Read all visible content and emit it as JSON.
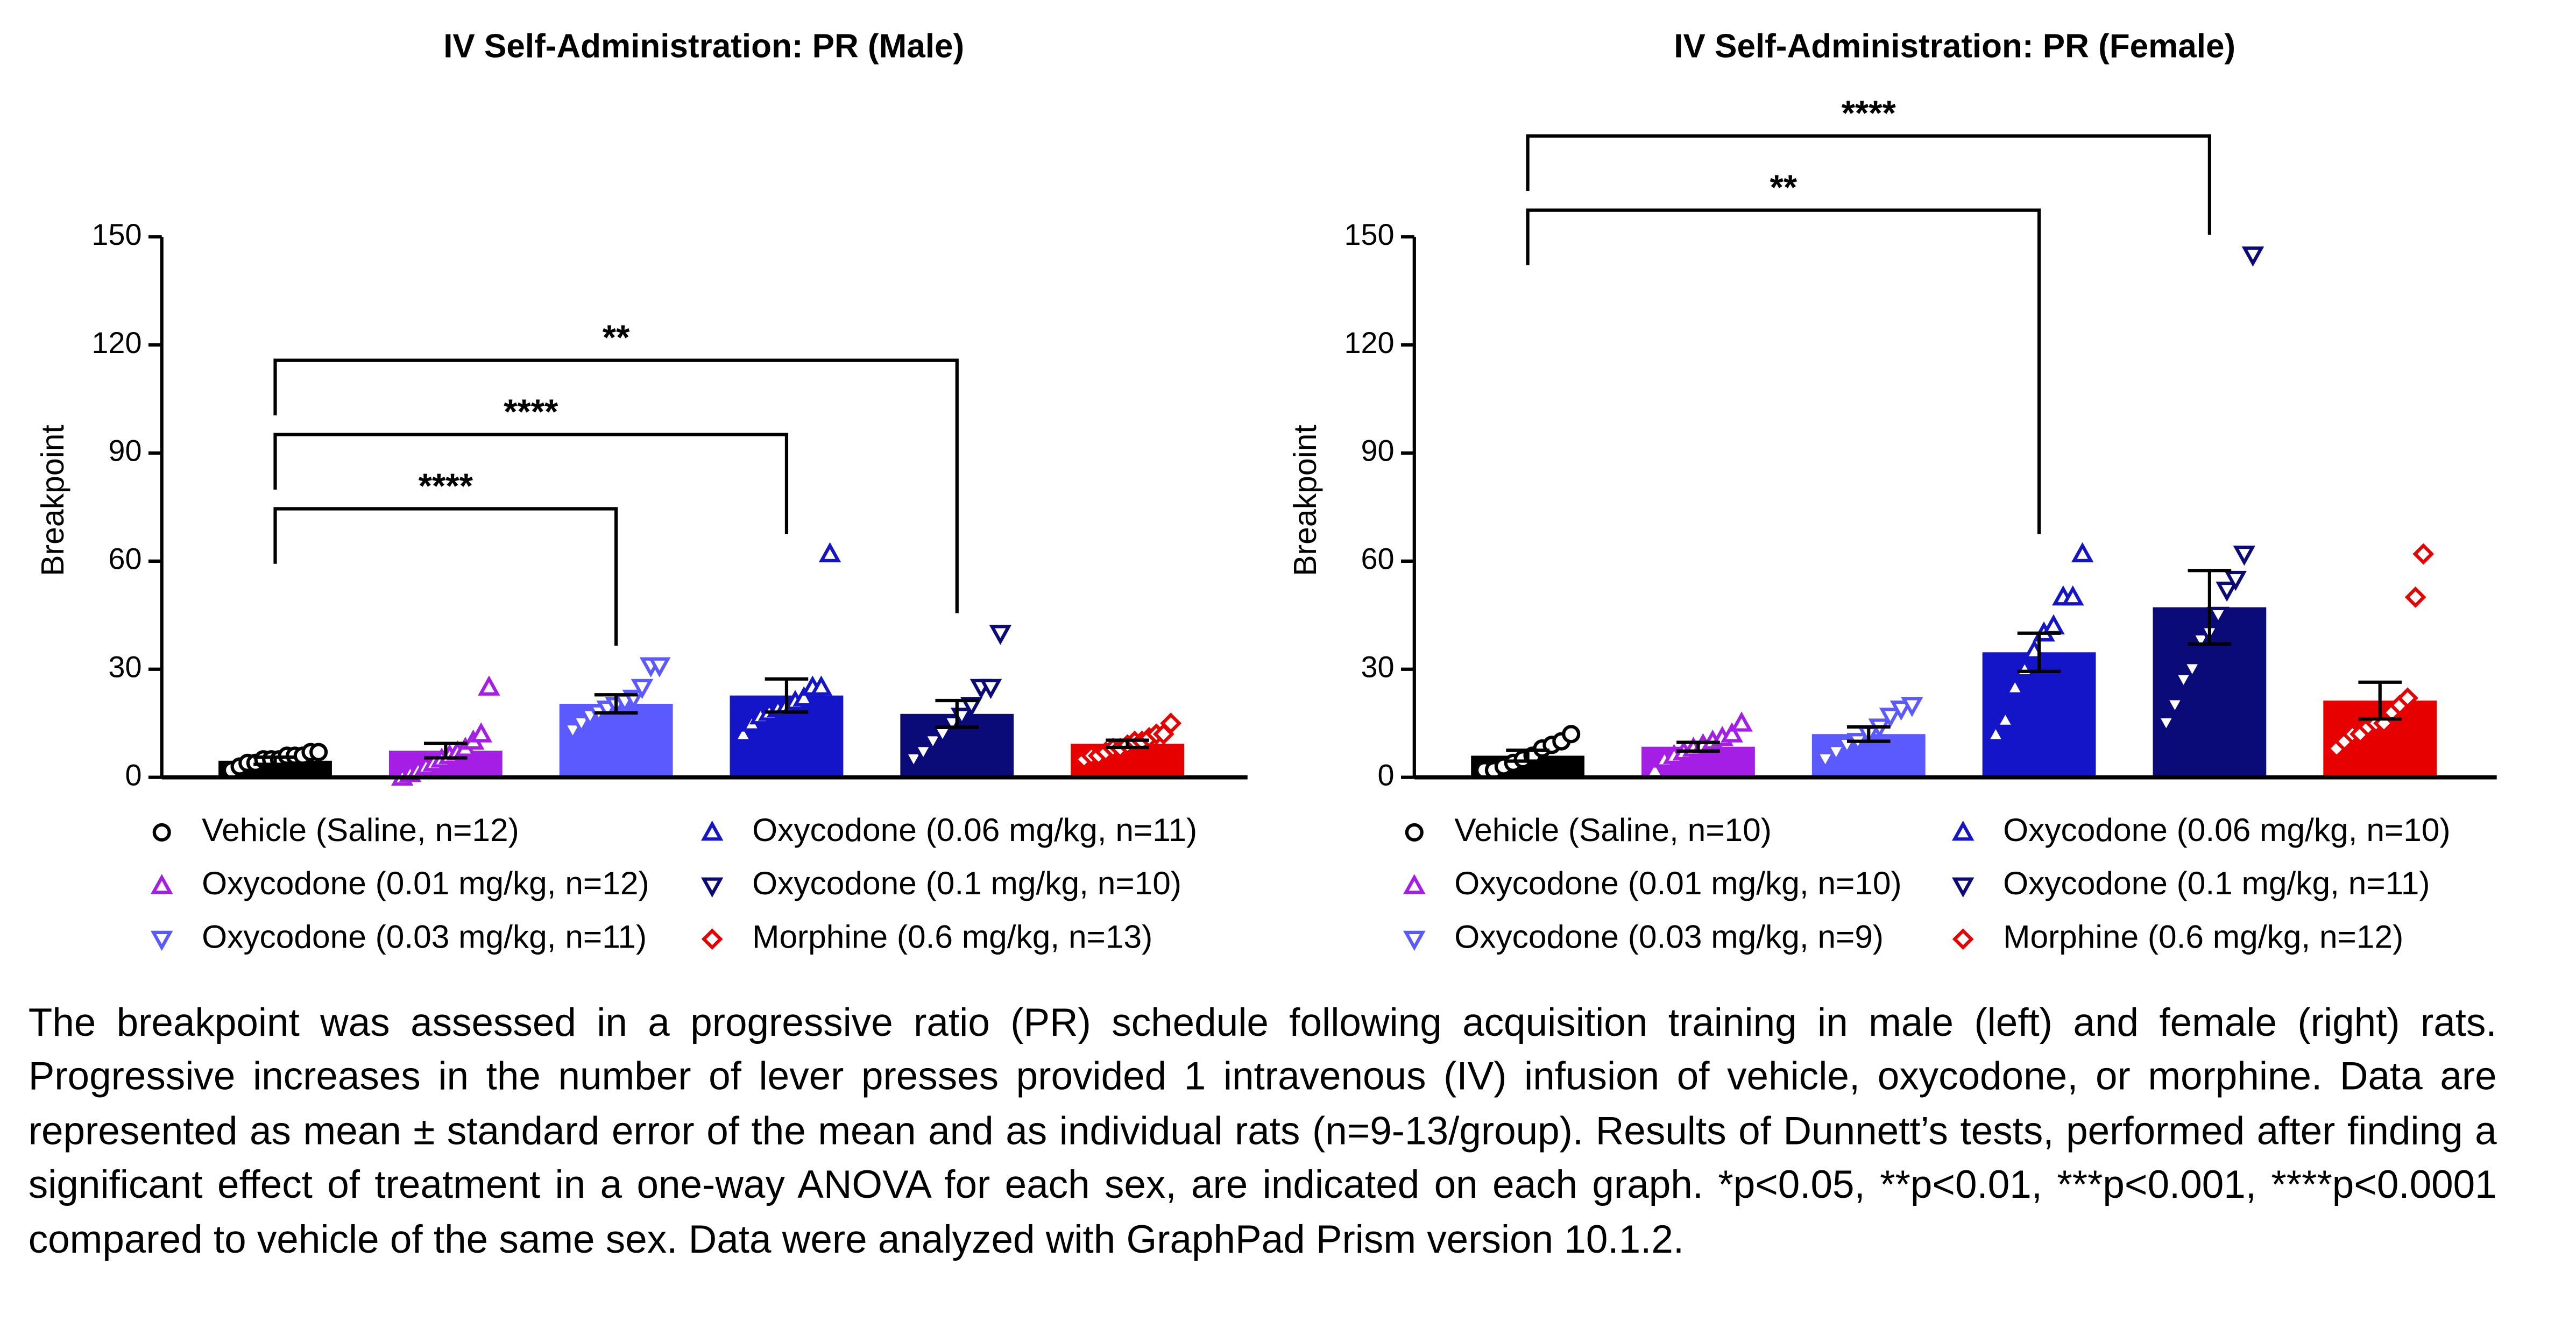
{
  "chart_data": [
    {
      "type": "bar",
      "title": "IV Self-Administration: PR (Male)",
      "y_label": "Breakpoint",
      "categories": [
        "Vehicle (Saline, n=12)",
        "Oxycodone (0.01 mg/kg, n=12)",
        "Oxycodone (0.03 mg/kg, n=11)",
        "Oxycodone (0.06 mg/kg, n=11)",
        "Oxycodone (0.1 mg/kg, n=10)",
        "Morphine (0.6 mg/kg, n=13)"
      ],
      "values": [
        4.6,
        7.4,
        20.4,
        22.7,
        17.6,
        9.3
      ],
      "errors": [
        1,
        2,
        2.5,
        4.6,
        3.7,
        1
      ],
      "colors": [
        "#000000",
        "#a51ee6",
        "#5a5aff",
        "#1414c8",
        "#0a0a78",
        "#e60000"
      ],
      "markers": [
        "circle",
        "triangle-up",
        "triangle-down",
        "triangle-up",
        "triangle-down",
        "diamond"
      ],
      "points": [
        [
          2,
          3,
          4,
          4,
          5,
          5,
          5,
          6,
          6,
          6,
          7,
          7
        ],
        [
          0,
          1,
          2,
          3,
          4,
          5,
          6,
          7,
          8,
          10,
          12,
          25
        ],
        [
          13,
          15,
          17,
          18,
          19,
          20,
          21,
          22,
          25,
          31,
          31
        ],
        [
          12,
          15,
          17,
          18,
          19,
          20,
          21,
          22,
          25,
          25,
          62
        ],
        [
          5,
          7,
          10,
          12,
          15,
          17,
          20,
          25,
          25,
          40
        ],
        [
          5,
          6,
          6,
          7,
          8,
          8,
          9,
          10,
          10,
          11,
          12,
          12,
          15
        ]
      ],
      "comparisons": [
        {
          "label": "****",
          "to": "Oxycodone (0.03 mg/kg, n=11)"
        },
        {
          "label": "****",
          "to": "Oxycodone (0.06 mg/kg, n=11)"
        },
        {
          "label": "**",
          "to": "Oxycodone (0.1 mg/kg, n=10)"
        }
      ],
      "ylim": [
        0,
        150
      ],
      "yticks": [
        0,
        30,
        60,
        90,
        120,
        150
      ]
    },
    {
      "type": "bar",
      "title": "IV Self-Administration: PR (Female)",
      "y_label": "Breakpoint",
      "categories": [
        "Vehicle (Saline, n=10)",
        "Oxycodone (0.01 mg/kg, n=10)",
        "Oxycodone (0.03 mg/kg, n=9)",
        "Oxycodone (0.06 mg/kg, n=10)",
        "Oxycodone (0.1 mg/kg, n=11)",
        "Morphine (0.6 mg/kg, n=12)"
      ],
      "values": [
        6,
        8.5,
        12,
        34.7,
        47.2,
        21.3
      ],
      "errors": [
        1.5,
        1.2,
        2,
        5.3,
        10.2,
        5.1
      ],
      "colors": [
        "#000000",
        "#a51ee6",
        "#5a5aff",
        "#1414c8",
        "#0a0a78",
        "#e60000"
      ],
      "markers": [
        "circle",
        "triangle-up",
        "triangle-down",
        "triangle-up",
        "triangle-down",
        "diamond"
      ],
      "points": [
        [
          2,
          2,
          3,
          4,
          5,
          6,
          8,
          9,
          10,
          12
        ],
        [
          2,
          5,
          6,
          7,
          8,
          9,
          10,
          11,
          12,
          15
        ],
        [
          5,
          7,
          9,
          10,
          12,
          14,
          17,
          19,
          20
        ],
        [
          12,
          16,
          25,
          30,
          35,
          40,
          42,
          50,
          50,
          62
        ],
        [
          15,
          20,
          27,
          30,
          38,
          40,
          45,
          52,
          55,
          62,
          145
        ],
        [
          8,
          10,
          12,
          12,
          14,
          15,
          15,
          18,
          20,
          22,
          50,
          62
        ]
      ],
      "comparisons": [
        {
          "label": "**",
          "to": "Oxycodone (0.06 mg/kg, n=10)"
        },
        {
          "label": "****",
          "to": "Oxycodone (0.1 mg/kg, n=11)"
        }
      ],
      "ylim": [
        0,
        150
      ],
      "yticks": [
        0,
        30,
        60,
        90,
        120,
        150
      ]
    }
  ],
  "caption": "The breakpoint was assessed in a progressive ratio (PR) schedule following acquisition training in male (left) and female (right) rats. Progressive increases in the number of lever presses provided 1 intravenous (IV) infusion of vehicle, oxycodone, or morphine. Data are represented as mean ± standard error of the mean and as individual rats (n=9-13/group). Results of Dunnett’s tests, performed after finding a significant effect of treatment in a one-way ANOVA for each sex, are indicated on each graph. *p<0.05, **p<0.01, ***p<0.001, ****p<0.0001 compared to vehicle of the same sex. Data were analyzed with GraphPad Prism version 10.1.2."
}
